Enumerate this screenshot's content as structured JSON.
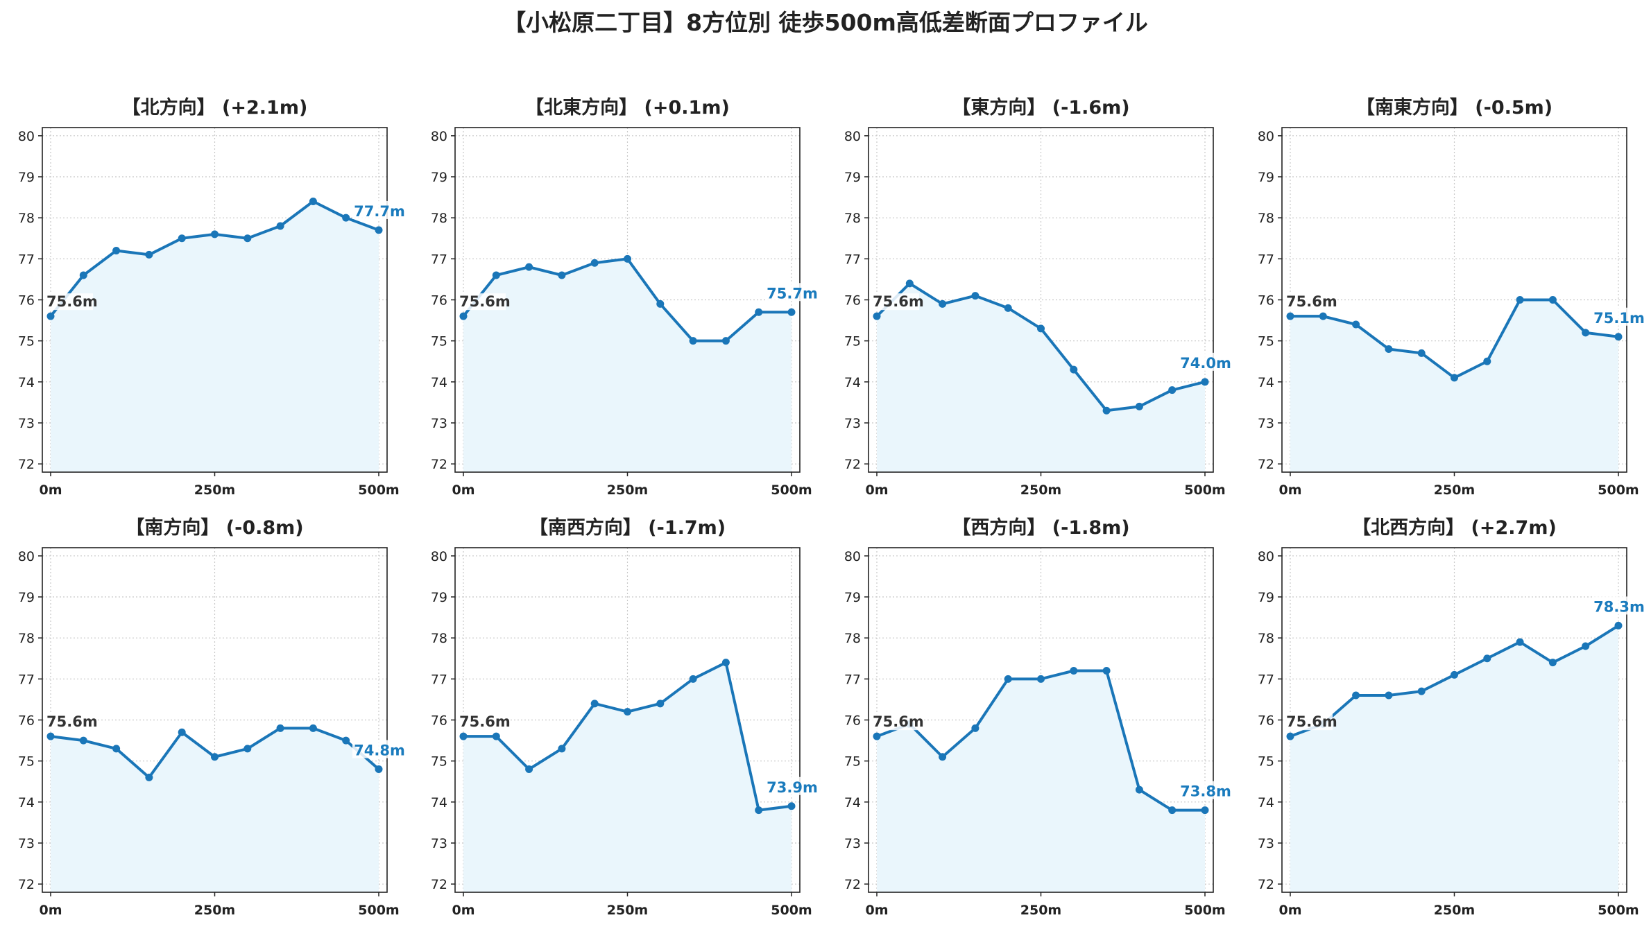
{
  "title": "【小松原二丁目】8方位別 徒歩500m高低差断面プロファイル",
  "colors": {
    "line": "#1a76b8",
    "fill": "#eaf6fc",
    "end_label": "#1a7bbd",
    "grid": "#c8c8c8"
  },
  "chart_data": [
    {
      "type": "area",
      "title": "【北方向】 (+2.1m)",
      "x": [
        0,
        50,
        100,
        150,
        200,
        250,
        300,
        350,
        400,
        450,
        500
      ],
      "x_tick_labels": [
        "0m",
        "250m",
        "500m"
      ],
      "x_ticks": [
        0,
        250,
        500
      ],
      "y": [
        75.6,
        76.6,
        77.2,
        77.1,
        77.5,
        77.6,
        77.5,
        77.8,
        78.4,
        78.0,
        77.7
      ],
      "ylim": [
        71.8,
        80.2
      ],
      "y_ticks": [
        72,
        73,
        74,
        75,
        76,
        77,
        78,
        79,
        80
      ],
      "start_label": "75.6m",
      "end_label": "77.7m",
      "grid": true
    },
    {
      "type": "area",
      "title": "【北東方向】 (+0.1m)",
      "x": [
        0,
        50,
        100,
        150,
        200,
        250,
        300,
        350,
        400,
        450,
        500
      ],
      "x_tick_labels": [
        "0m",
        "250m",
        "500m"
      ],
      "x_ticks": [
        0,
        250,
        500
      ],
      "y": [
        75.6,
        76.6,
        76.8,
        76.6,
        76.9,
        77.0,
        75.9,
        75.0,
        75.0,
        75.7,
        75.7
      ],
      "ylim": [
        71.8,
        80.2
      ],
      "y_ticks": [
        72,
        73,
        74,
        75,
        76,
        77,
        78,
        79,
        80
      ],
      "start_label": "75.6m",
      "end_label": "75.7m",
      "grid": true
    },
    {
      "type": "area",
      "title": "【東方向】 (-1.6m)",
      "x": [
        0,
        50,
        100,
        150,
        200,
        250,
        300,
        350,
        400,
        450,
        500
      ],
      "x_tick_labels": [
        "0m",
        "250m",
        "500m"
      ],
      "x_ticks": [
        0,
        250,
        500
      ],
      "y": [
        75.6,
        76.4,
        75.9,
        76.1,
        75.8,
        75.3,
        74.3,
        73.3,
        73.4,
        73.8,
        74.0
      ],
      "ylim": [
        71.8,
        80.2
      ],
      "y_ticks": [
        72,
        73,
        74,
        75,
        76,
        77,
        78,
        79,
        80
      ],
      "start_label": "75.6m",
      "end_label": "74.0m",
      "grid": true
    },
    {
      "type": "area",
      "title": "【南東方向】 (-0.5m)",
      "x": [
        0,
        50,
        100,
        150,
        200,
        250,
        300,
        350,
        400,
        450,
        500
      ],
      "x_tick_labels": [
        "0m",
        "250m",
        "500m"
      ],
      "x_ticks": [
        0,
        250,
        500
      ],
      "y": [
        75.6,
        75.6,
        75.4,
        74.8,
        74.7,
        74.1,
        74.5,
        76.0,
        76.0,
        75.2,
        75.1
      ],
      "ylim": [
        71.8,
        80.2
      ],
      "y_ticks": [
        72,
        73,
        74,
        75,
        76,
        77,
        78,
        79,
        80
      ],
      "start_label": "75.6m",
      "end_label": "75.1m",
      "grid": true
    },
    {
      "type": "area",
      "title": "【南方向】 (-0.8m)",
      "x": [
        0,
        50,
        100,
        150,
        200,
        250,
        300,
        350,
        400,
        450,
        500
      ],
      "x_tick_labels": [
        "0m",
        "250m",
        "500m"
      ],
      "x_ticks": [
        0,
        250,
        500
      ],
      "y": [
        75.6,
        75.5,
        75.3,
        74.6,
        75.7,
        75.1,
        75.3,
        75.8,
        75.8,
        75.5,
        74.8
      ],
      "ylim": [
        71.8,
        80.2
      ],
      "y_ticks": [
        72,
        73,
        74,
        75,
        76,
        77,
        78,
        79,
        80
      ],
      "start_label": "75.6m",
      "end_label": "74.8m",
      "grid": true
    },
    {
      "type": "area",
      "title": "【南西方向】 (-1.7m)",
      "x": [
        0,
        50,
        100,
        150,
        200,
        250,
        300,
        350,
        400,
        450,
        500
      ],
      "x_tick_labels": [
        "0m",
        "250m",
        "500m"
      ],
      "x_ticks": [
        0,
        250,
        500
      ],
      "y": [
        75.6,
        75.6,
        74.8,
        75.3,
        76.4,
        76.2,
        76.4,
        77.0,
        77.4,
        73.8,
        73.9
      ],
      "ylim": [
        71.8,
        80.2
      ],
      "y_ticks": [
        72,
        73,
        74,
        75,
        76,
        77,
        78,
        79,
        80
      ],
      "start_label": "75.6m",
      "end_label": "73.9m",
      "grid": true
    },
    {
      "type": "area",
      "title": "【西方向】 (-1.8m)",
      "x": [
        0,
        50,
        100,
        150,
        200,
        250,
        300,
        350,
        400,
        450,
        500
      ],
      "x_tick_labels": [
        "0m",
        "250m",
        "500m"
      ],
      "x_ticks": [
        0,
        250,
        500
      ],
      "y": [
        75.6,
        75.9,
        75.1,
        75.8,
        77.0,
        77.0,
        77.2,
        77.2,
        74.3,
        73.8,
        73.8
      ],
      "ylim": [
        71.8,
        80.2
      ],
      "y_ticks": [
        72,
        73,
        74,
        75,
        76,
        77,
        78,
        79,
        80
      ],
      "start_label": "75.6m",
      "end_label": "73.8m",
      "grid": true
    },
    {
      "type": "area",
      "title": "【北西方向】 (+2.7m)",
      "x": [
        0,
        50,
        100,
        150,
        200,
        250,
        300,
        350,
        400,
        450,
        500
      ],
      "x_tick_labels": [
        "0m",
        "250m",
        "500m"
      ],
      "x_ticks": [
        0,
        250,
        500
      ],
      "y": [
        75.6,
        75.9,
        76.6,
        76.6,
        76.7,
        77.1,
        77.5,
        77.9,
        77.4,
        77.8,
        78.3
      ],
      "ylim": [
        71.8,
        80.2
      ],
      "y_ticks": [
        72,
        73,
        74,
        75,
        76,
        77,
        78,
        79,
        80
      ],
      "start_label": "75.6m",
      "end_label": "78.3m",
      "grid": true
    }
  ]
}
